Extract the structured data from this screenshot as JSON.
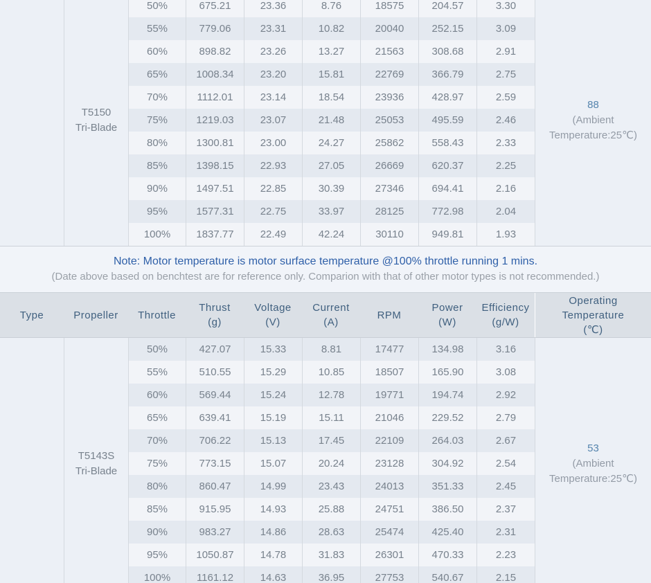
{
  "note": {
    "line1": "Note: Motor temperature is motor surface temperature @100% throttle running 1 mins.",
    "line2": "(Date above based on benchtest are for reference only. Comparion with that of other motor types is not recommended.)"
  },
  "header": {
    "columns": [
      {
        "id": "type",
        "lines": [
          "Type"
        ]
      },
      {
        "id": "propeller",
        "lines": [
          "Propeller"
        ]
      },
      {
        "id": "throttle",
        "lines": [
          "Throttle"
        ]
      },
      {
        "id": "thrust",
        "lines": [
          "Thrust",
          "(g)"
        ]
      },
      {
        "id": "voltage",
        "lines": [
          "Voltage",
          "(V)"
        ]
      },
      {
        "id": "current",
        "lines": [
          "Current",
          "(A)"
        ]
      },
      {
        "id": "rpm",
        "lines": [
          "RPM"
        ]
      },
      {
        "id": "power",
        "lines": [
          "Power",
          "(W)"
        ]
      },
      {
        "id": "efficiency",
        "lines": [
          "Efficiency",
          "(g/W)"
        ]
      },
      {
        "id": "operating-temperature",
        "lines": [
          "Operating",
          "Temperature",
          "(℃)"
        ]
      }
    ]
  },
  "groups": [
    {
      "type": "",
      "propeller_lines": [
        "T5150",
        "Tri-Blade"
      ],
      "operating_temperature": {
        "value": "88",
        "note": "(Ambient Temperature:25℃)"
      },
      "stripe_start": "light",
      "rows": [
        [
          "50%",
          "675.21",
          "23.36",
          "8.76",
          "18575",
          "204.57",
          "3.30"
        ],
        [
          "55%",
          "779.06",
          "23.31",
          "10.82",
          "20040",
          "252.15",
          "3.09"
        ],
        [
          "60%",
          "898.82",
          "23.26",
          "13.27",
          "21563",
          "308.68",
          "2.91"
        ],
        [
          "65%",
          "1008.34",
          "23.20",
          "15.81",
          "22769",
          "366.79",
          "2.75"
        ],
        [
          "70%",
          "1112.01",
          "23.14",
          "18.54",
          "23936",
          "428.97",
          "2.59"
        ],
        [
          "75%",
          "1219.03",
          "23.07",
          "21.48",
          "25053",
          "495.59",
          "2.46"
        ],
        [
          "80%",
          "1300.81",
          "23.00",
          "24.27",
          "25862",
          "558.43",
          "2.33"
        ],
        [
          "85%",
          "1398.15",
          "22.93",
          "27.05",
          "26669",
          "620.37",
          "2.25"
        ],
        [
          "90%",
          "1497.51",
          "22.85",
          "30.39",
          "27346",
          "694.41",
          "2.16"
        ],
        [
          "95%",
          "1577.31",
          "22.75",
          "33.97",
          "28125",
          "772.98",
          "2.04"
        ],
        [
          "100%",
          "1837.77",
          "22.49",
          "42.24",
          "30110",
          "949.81",
          "1.93"
        ]
      ]
    },
    {
      "type": "",
      "propeller_lines": [
        "T5143S",
        "Tri-Blade"
      ],
      "operating_temperature": {
        "value": "53",
        "note": "(Ambient Temperature:25℃)"
      },
      "stripe_start": "dark",
      "rows": [
        [
          "50%",
          "427.07",
          "15.33",
          "8.81",
          "17477",
          "134.98",
          "3.16"
        ],
        [
          "55%",
          "510.55",
          "15.29",
          "10.85",
          "18507",
          "165.90",
          "3.08"
        ],
        [
          "60%",
          "569.44",
          "15.24",
          "12.78",
          "19771",
          "194.74",
          "2.92"
        ],
        [
          "65%",
          "639.41",
          "15.19",
          "15.11",
          "21046",
          "229.52",
          "2.79"
        ],
        [
          "70%",
          "706.22",
          "15.13",
          "17.45",
          "22109",
          "264.03",
          "2.67"
        ],
        [
          "75%",
          "773.15",
          "15.07",
          "20.24",
          "23128",
          "304.92",
          "2.54"
        ],
        [
          "80%",
          "860.47",
          "14.99",
          "23.43",
          "24013",
          "351.33",
          "2.45"
        ],
        [
          "85%",
          "915.95",
          "14.93",
          "25.88",
          "24751",
          "386.50",
          "2.37"
        ],
        [
          "90%",
          "983.27",
          "14.86",
          "28.63",
          "25474",
          "425.40",
          "2.31"
        ],
        [
          "95%",
          "1050.87",
          "14.78",
          "31.83",
          "26301",
          "470.33",
          "2.23"
        ],
        [
          "100%",
          "1161.12",
          "14.63",
          "36.95",
          "27753",
          "540.67",
          "2.15"
        ]
      ]
    }
  ],
  "colors": {
    "note_text": "#2e5fa8",
    "temp_value_text": "#5584ad",
    "header_text": "#40607f",
    "data_text": "#78828d"
  }
}
